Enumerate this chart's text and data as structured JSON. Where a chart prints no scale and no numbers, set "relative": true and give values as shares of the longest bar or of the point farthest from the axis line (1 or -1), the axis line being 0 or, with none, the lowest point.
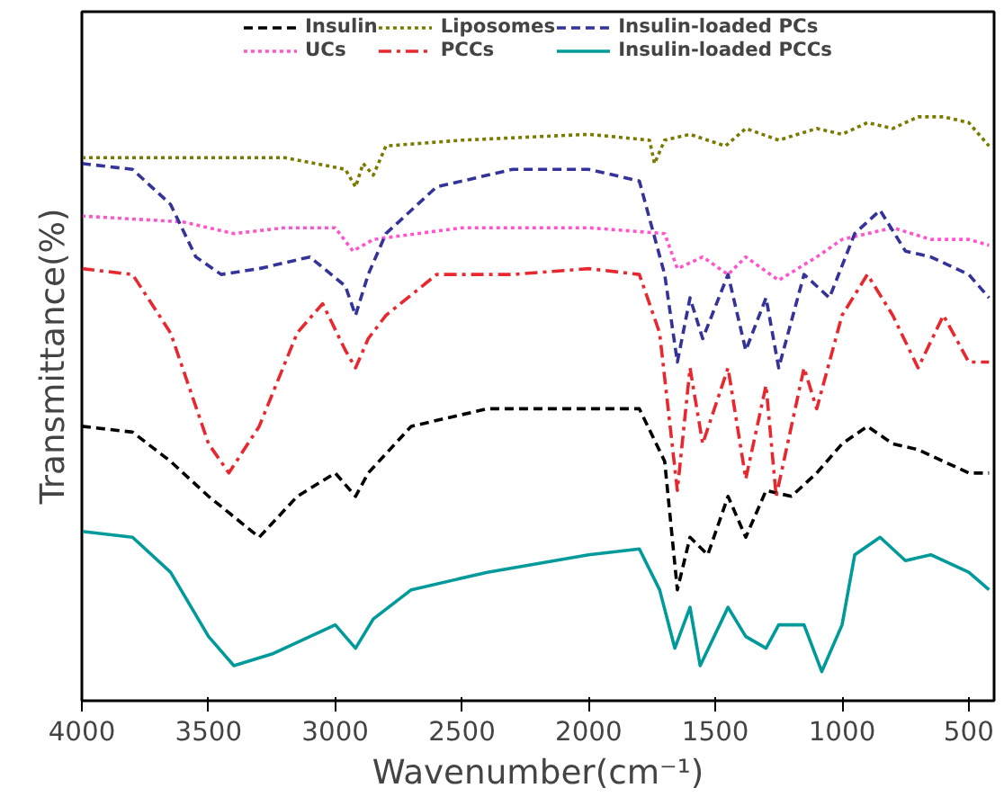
{
  "chart_data": {
    "type": "line",
    "relative": true,
    "xlabel": "Wavenumber(cm⁻¹)",
    "ylabel": "Transmittance(%)",
    "xlim": [
      4000,
      400
    ],
    "xticks": [
      4000,
      3500,
      3000,
      2500,
      2000,
      1500,
      1000,
      500
    ],
    "grid": false,
    "legend": "top",
    "marker": "none",
    "series": [
      {
        "name": "Insulin",
        "color": "#000000",
        "line_style": "dashed",
        "x": [
          4000,
          3800,
          3650,
          3500,
          3300,
          3150,
          3000,
          2920,
          2870,
          2700,
          2400,
          2000,
          1800,
          1700,
          1650,
          1600,
          1530,
          1450,
          1380,
          1300,
          1200,
          1100,
          1000,
          900,
          800,
          700,
          600,
          500,
          420
        ],
        "values": [
          0.47,
          0.46,
          0.41,
          0.35,
          0.28,
          0.35,
          0.39,
          0.35,
          0.39,
          0.47,
          0.5,
          0.5,
          0.5,
          0.41,
          0.19,
          0.28,
          0.25,
          0.35,
          0.28,
          0.36,
          0.35,
          0.39,
          0.44,
          0.47,
          0.44,
          0.43,
          0.41,
          0.39,
          0.39
        ]
      },
      {
        "name": "UCs",
        "color": "#ff55cc",
        "line_style": "dotted",
        "x": [
          4000,
          3600,
          3400,
          3200,
          3000,
          2930,
          2850,
          2500,
          2000,
          1700,
          1650,
          1550,
          1450,
          1380,
          1250,
          1100,
          1000,
          900,
          800,
          650,
          500,
          420
        ],
        "values": [
          0.83,
          0.82,
          0.8,
          0.81,
          0.81,
          0.77,
          0.79,
          0.81,
          0.81,
          0.8,
          0.74,
          0.76,
          0.73,
          0.76,
          0.72,
          0.76,
          0.79,
          0.8,
          0.81,
          0.79,
          0.79,
          0.78
        ]
      },
      {
        "name": "Liposomes",
        "color": "#7a7a00",
        "line_style": "dotted",
        "x": [
          4000,
          3600,
          3200,
          2960,
          2920,
          2890,
          2850,
          2800,
          2500,
          2000,
          1760,
          1740,
          1700,
          1600,
          1460,
          1380,
          1250,
          1100,
          1000,
          900,
          800,
          700,
          600,
          500,
          420
        ],
        "values": [
          0.93,
          0.93,
          0.93,
          0.91,
          0.88,
          0.92,
          0.9,
          0.95,
          0.96,
          0.97,
          0.96,
          0.92,
          0.96,
          0.97,
          0.95,
          0.98,
          0.96,
          0.98,
          0.97,
          0.99,
          0.98,
          1.0,
          1.0,
          0.99,
          0.95
        ]
      },
      {
        "name": "PCCs",
        "color": "#e8282e",
        "line_style": "dashdot",
        "x": [
          4000,
          3800,
          3650,
          3500,
          3420,
          3300,
          3150,
          3050,
          2960,
          2920,
          2870,
          2800,
          2600,
          2300,
          2000,
          1800,
          1720,
          1650,
          1600,
          1550,
          1450,
          1380,
          1300,
          1260,
          1150,
          1100,
          1000,
          900,
          800,
          700,
          600,
          500,
          420
        ],
        "values": [
          0.74,
          0.73,
          0.63,
          0.44,
          0.39,
          0.47,
          0.63,
          0.68,
          0.6,
          0.57,
          0.62,
          0.66,
          0.73,
          0.73,
          0.74,
          0.73,
          0.63,
          0.36,
          0.57,
          0.44,
          0.57,
          0.38,
          0.54,
          0.35,
          0.57,
          0.5,
          0.66,
          0.73,
          0.66,
          0.57,
          0.66,
          0.58,
          0.58
        ]
      },
      {
        "name": "Insulin-loaded PCs",
        "color": "#333399",
        "line_style": "dashed",
        "x": [
          4000,
          3800,
          3650,
          3550,
          3450,
          3300,
          3100,
          2960,
          2920,
          2870,
          2800,
          2600,
          2300,
          2000,
          1800,
          1700,
          1650,
          1600,
          1550,
          1450,
          1380,
          1300,
          1250,
          1150,
          1050,
          950,
          850,
          750,
          650,
          500,
          420
        ],
        "values": [
          0.92,
          0.91,
          0.85,
          0.76,
          0.73,
          0.74,
          0.76,
          0.71,
          0.66,
          0.73,
          0.8,
          0.88,
          0.91,
          0.91,
          0.89,
          0.73,
          0.58,
          0.69,
          0.62,
          0.73,
          0.6,
          0.69,
          0.57,
          0.73,
          0.69,
          0.8,
          0.84,
          0.77,
          0.76,
          0.73,
          0.69
        ]
      },
      {
        "name": "Insulin-loaded PCCs",
        "color": "#009a9a",
        "line_style": "solid",
        "x": [
          4000,
          3800,
          3650,
          3500,
          3400,
          3250,
          3100,
          3000,
          2920,
          2850,
          2700,
          2400,
          2000,
          1800,
          1720,
          1660,
          1600,
          1560,
          1450,
          1380,
          1300,
          1250,
          1150,
          1080,
          1000,
          950,
          850,
          750,
          650,
          500,
          420
        ],
        "values": [
          0.29,
          0.28,
          0.22,
          0.11,
          0.06,
          0.08,
          0.11,
          0.13,
          0.09,
          0.14,
          0.19,
          0.22,
          0.25,
          0.26,
          0.19,
          0.09,
          0.16,
          0.06,
          0.16,
          0.11,
          0.09,
          0.13,
          0.13,
          0.05,
          0.13,
          0.25,
          0.28,
          0.24,
          0.25,
          0.22,
          0.19
        ]
      }
    ]
  }
}
